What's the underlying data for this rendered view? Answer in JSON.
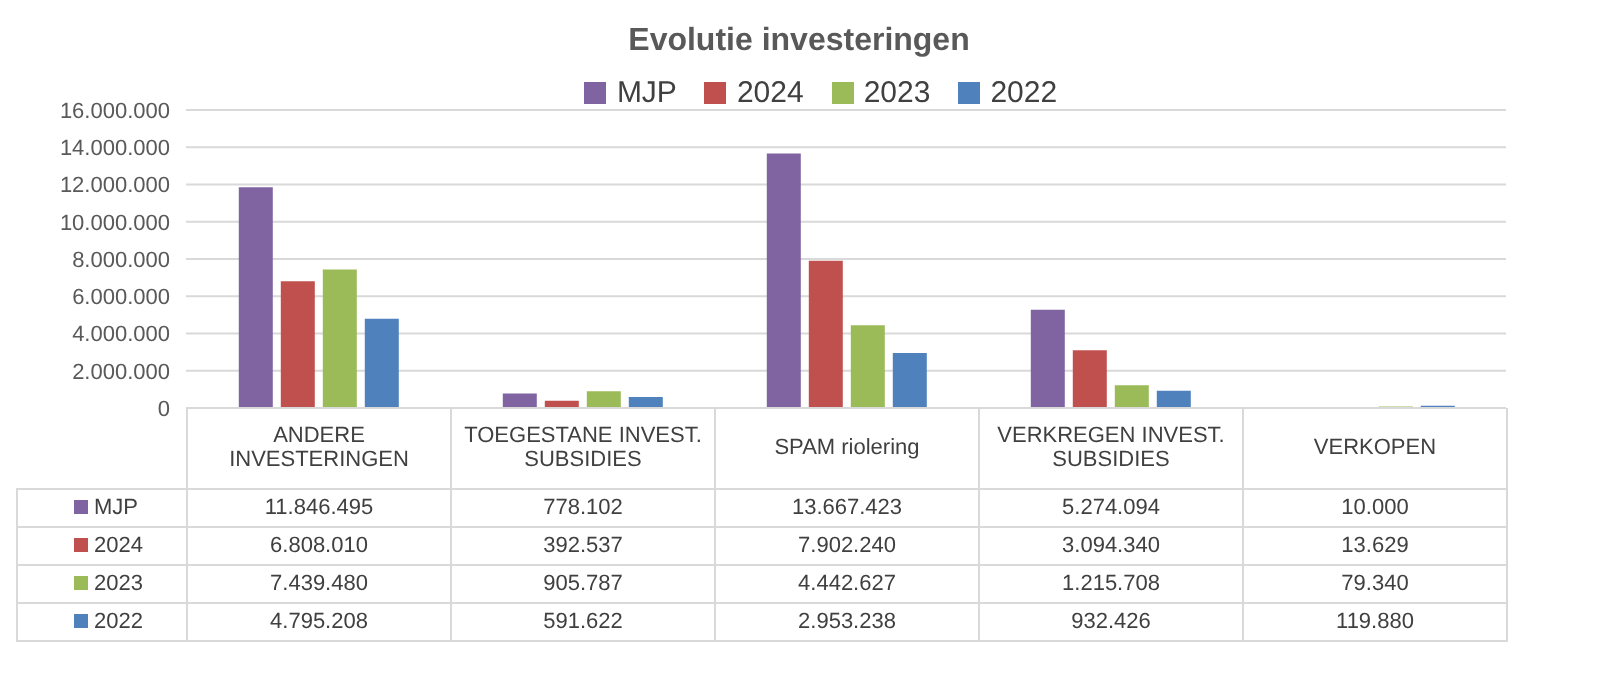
{
  "chart_data": {
    "type": "bar",
    "title": "Evolutie investeringen",
    "categories": [
      "ANDERE INVESTERINGEN",
      "TOEGESTANE INVEST. SUBSIDIES",
      "SPAM riolering",
      "VERKREGEN INVEST. SUBSIDIES",
      "VERKOPEN"
    ],
    "series": [
      {
        "name": "MJP",
        "color": "#8064a2",
        "values": [
          11846495,
          778102,
          13667423,
          5274094,
          10000
        ],
        "value_labels": [
          "11.846.495",
          "778.102",
          "13.667.423",
          "5.274.094",
          "10.000"
        ]
      },
      {
        "name": "2024",
        "color": "#c0504d",
        "values": [
          6808010,
          392537,
          7902240,
          3094340,
          13629
        ],
        "value_labels": [
          "6.808.010",
          "392.537",
          "7.902.240",
          "3.094.340",
          "13.629"
        ]
      },
      {
        "name": "2023",
        "color": "#9bbb59",
        "values": [
          7439480,
          905787,
          4442627,
          1215708,
          79340
        ],
        "value_labels": [
          "7.439.480",
          "905.787",
          "4.442.627",
          "1.215.708",
          "79.340"
        ]
      },
      {
        "name": "2022",
        "color": "#4f81bd",
        "values": [
          4795208,
          591622,
          2953238,
          932426,
          119880
        ],
        "value_labels": [
          "4.795.208",
          "591.622",
          "2.953.238",
          "932.426",
          "119.880"
        ]
      }
    ],
    "ylim": [
      0,
      16000000
    ],
    "yticks": [
      0,
      {
        "value": 2000000,
        "label": "2.000.000"
      },
      {
        "value": 4000000,
        "label": "4.000.000"
      },
      {
        "value": 6000000,
        "label": "6.000.000"
      },
      {
        "value": 8000000,
        "label": "8.000.000"
      },
      {
        "value": 10000000,
        "label": "10.000.000"
      },
      {
        "value": 12000000,
        "label": "12.000.000"
      },
      {
        "value": 14000000,
        "label": "14.000.000"
      },
      {
        "value": 16000000,
        "label": "16.000.000"
      }
    ],
    "grid": "y",
    "legend": "top"
  }
}
